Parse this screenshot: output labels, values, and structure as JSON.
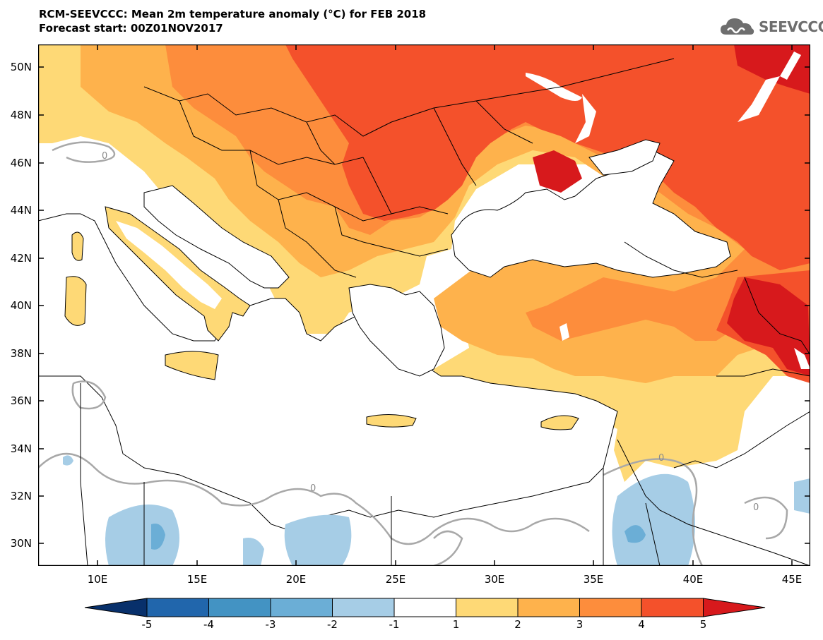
{
  "title_line1": "RCM-SEEVCCC: Mean 2m temperature anomaly (°C) for FEB 2018",
  "title_line2": "Forecast start: 00Z01NOV2017",
  "brand": {
    "name": "SEEVCCC",
    "icon": "cloud-logo-icon"
  },
  "map": {
    "variable": "Mean 2m temperature anomaly",
    "unit": "°C",
    "lat_labels": [
      "50N",
      "48N",
      "46N",
      "44N",
      "42N",
      "40N",
      "38N",
      "36N",
      "34N",
      "32N",
      "30N"
    ],
    "lon_labels": [
      "10E",
      "15E",
      "20E",
      "25E",
      "30E",
      "35E",
      "40E",
      "45E"
    ],
    "contour_label": "0"
  },
  "colorbar": {
    "labels": [
      "-5",
      "-4",
      "-3",
      "-2",
      "-1",
      "1",
      "2",
      "3",
      "4",
      "5"
    ],
    "colors": {
      "below_-5": "#08306b",
      "-5_-4": "#2166ac",
      "-4_-3": "#4393c3",
      "-3_-2": "#6baed6",
      "-2_-1": "#a6cde6",
      "-1_1": "#ffffff",
      "1_2": "#fed976",
      "2_3": "#feb24c",
      "3_4": "#fd8d3c",
      "4_5": "#f4512b",
      "above_5": "#d7191c"
    }
  },
  "colors": {
    "sea": "#ffffff",
    "border_line": "#000000",
    "zero_contour": "#a8a8a8"
  }
}
